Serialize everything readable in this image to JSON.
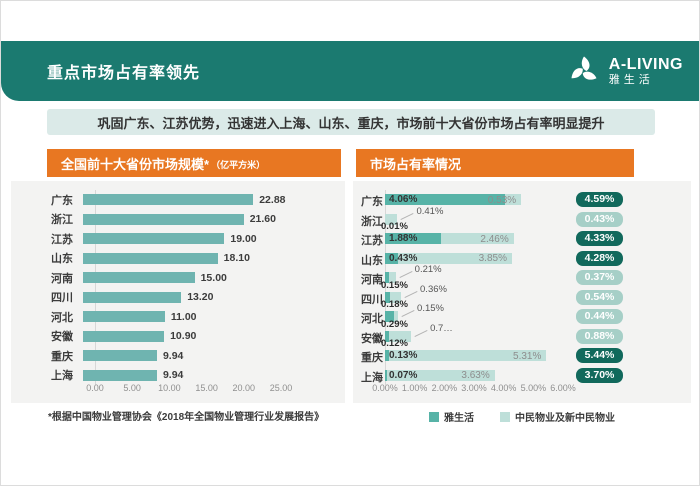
{
  "header": {
    "title": "重点市场占有率领先",
    "logo": {
      "name": "A-LIVING",
      "cn": "雅生活"
    }
  },
  "banner": "巩固广东、江苏优势，迅速进入上海、山东、重庆，市场前十大省份市场占有率明显提升",
  "footnote": "*根据中国物业管理协会《2018年全国物业管理行业发展报告》",
  "colors": {
    "header_teal": "#1b7a70",
    "orange": "#e87722",
    "banner_bg": "#dbeae8",
    "panel_bg": "#f3f3f2",
    "left_bar": "#6fb4b0",
    "series1": "#57b3a7",
    "series2": "#bedfd9",
    "badge_dark": "#11695c",
    "badge_light": "#a6cfc7"
  },
  "chart_data": [
    {
      "type": "bar",
      "orientation": "horizontal",
      "title": "全国前十大省份市场规模*",
      "unit": "（亿平方米）",
      "categories": [
        "广东",
        "浙江",
        "江苏",
        "山东",
        "河南",
        "四川",
        "河北",
        "安徽",
        "重庆",
        "上海"
      ],
      "values": [
        22.88,
        21.6,
        19.0,
        18.1,
        15.0,
        13.2,
        11.0,
        10.9,
        9.94,
        9.94
      ],
      "value_labels": [
        "22.88",
        "21.60",
        "19.00",
        "18.10",
        "15.00",
        "13.20",
        "11.00",
        "10.90",
        "9.94",
        "9.94"
      ],
      "xlim": [
        0,
        25
      ],
      "x_ticks": [
        "0.00",
        "5.00",
        "10.00",
        "15.00",
        "20.00",
        "25.00"
      ],
      "x_tick_values": [
        0,
        5,
        10,
        15,
        20,
        25
      ],
      "grid": false,
      "legend": false
    },
    {
      "type": "stacked-bar",
      "orientation": "horizontal",
      "title": "市场占有率情况",
      "categories": [
        "广东",
        "浙江",
        "江苏",
        "山东",
        "河南",
        "四川",
        "河北",
        "安徽",
        "重庆",
        "上海"
      ],
      "series": [
        {
          "name": "雅生活",
          "values": [
            4.06,
            0.01,
            1.88,
            0.43,
            0.15,
            0.18,
            0.29,
            0.12,
            0.13,
            0.07
          ],
          "labels": [
            "4.06%",
            "0.01%",
            "1.88%",
            "0.43%",
            "0.15%",
            "0.18%",
            "0.29%",
            "0.12%",
            "0.13%",
            "0.07%"
          ]
        },
        {
          "name": "中民物业及新中民物业",
          "values": [
            0.53,
            0.41,
            2.46,
            3.85,
            0.21,
            0.36,
            0.15,
            0.76,
            5.31,
            3.63
          ],
          "labels": [
            "0.53%",
            "0.41%",
            "2.46%",
            "3.85%",
            "0.21%",
            "0.36%",
            "0.15%",
            "0.7…",
            "5.31%",
            "3.63%"
          ]
        }
      ],
      "totals": [
        "4.59%",
        "0.43%",
        "4.33%",
        "4.28%",
        "0.37%",
        "0.54%",
        "0.44%",
        "0.88%",
        "5.44%",
        "3.70%"
      ],
      "total_badge_style": [
        "dark",
        "light",
        "dark",
        "dark",
        "light",
        "light",
        "light",
        "light",
        "dark",
        "dark"
      ],
      "label_mode": [
        "inline",
        "callout",
        "inline",
        "inline",
        "callout",
        "callout",
        "callout",
        "callout",
        "inline",
        "inline"
      ],
      "xlim": [
        0,
        6
      ],
      "x_ticks": [
        "0.00%",
        "1.00%",
        "2.00%",
        "3.00%",
        "4.00%",
        "5.00%",
        "6.00%"
      ],
      "x_tick_values": [
        0,
        1,
        2,
        3,
        4,
        5,
        6
      ],
      "grid": false,
      "legend_position": "bottom"
    }
  ]
}
